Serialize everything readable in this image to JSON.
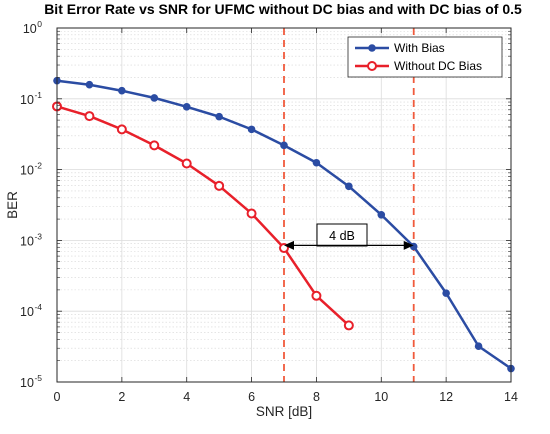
{
  "chart_data": {
    "type": "line",
    "title": "Bit Error Rate vs SNR for UFMC without DC bias and with DC bias of 0.5",
    "xlabel": "SNR [dB]",
    "ylabel": "BER",
    "xlim": [
      0,
      14
    ],
    "ylim": [
      1e-05,
      1
    ],
    "yscale": "log",
    "grid": true,
    "x_ticks": [
      0,
      2,
      4,
      6,
      8,
      10,
      12,
      14
    ],
    "y_ticks": [
      {
        "base": "10",
        "exp": "0",
        "value": 1
      },
      {
        "base": "10",
        "exp": "-1",
        "value": 0.1
      },
      {
        "base": "10",
        "exp": "-2",
        "value": 0.01
      },
      {
        "base": "10",
        "exp": "-3",
        "value": 0.001
      },
      {
        "base": "10",
        "exp": "-4",
        "value": 0.0001
      },
      {
        "base": "10",
        "exp": "-5",
        "value": 1e-05
      }
    ],
    "legend_position": "top-right",
    "series": [
      {
        "name": "With Bias",
        "color": "#2b4ca3",
        "marker": "filled-circle",
        "x": [
          0,
          1,
          2,
          3,
          4,
          5,
          6,
          7,
          8,
          9,
          10,
          11,
          12,
          13,
          14
        ],
        "y": [
          0.18,
          0.158,
          0.13,
          0.103,
          0.077,
          0.056,
          0.037,
          0.022,
          0.0125,
          0.0058,
          0.0023,
          0.00082,
          0.00018,
          3.2e-05,
          1.55e-05
        ]
      },
      {
        "name": "Without DC Bias",
        "color": "#e8202a",
        "marker": "open-circle",
        "x": [
          0,
          1,
          2,
          3,
          4,
          5,
          6,
          7,
          8,
          9
        ],
        "y": [
          0.078,
          0.057,
          0.037,
          0.022,
          0.0122,
          0.0059,
          0.0024,
          0.00078,
          0.000165,
          6.3e-05
        ]
      }
    ],
    "vlines": [
      {
        "x": 7,
        "color": "#f05a3c"
      },
      {
        "x": 11,
        "color": "#f05a3c"
      }
    ],
    "annotation": {
      "text": "4 dB",
      "x_from": 7,
      "x_to": 11,
      "y": 0.00085
    }
  }
}
